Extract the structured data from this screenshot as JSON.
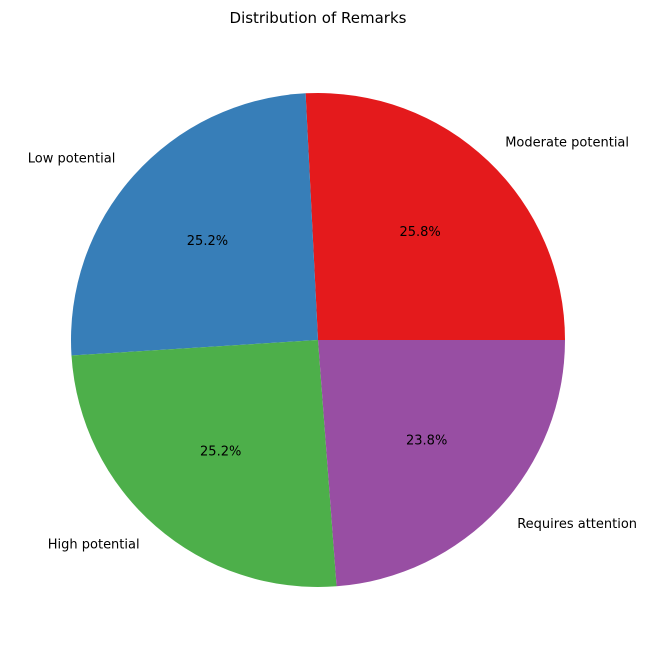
{
  "chart_data": {
    "type": "pie",
    "title": "Distribution of Remarks",
    "slices": [
      {
        "label": "Moderate potential",
        "value": 25.8,
        "pct_label": "25.8%",
        "color": "#e41a1c"
      },
      {
        "label": "Low potential",
        "value": 25.2,
        "pct_label": "25.2%",
        "color": "#377eb8"
      },
      {
        "label": "High potential",
        "value": 25.2,
        "pct_label": "25.2%",
        "color": "#4daf4a"
      },
      {
        "label": "Requires attention",
        "value": 23.8,
        "pct_label": "23.8%",
        "color": "#984ea3"
      }
    ],
    "start_angle_deg": 0,
    "direction": "counterclockwise",
    "legend": "none"
  }
}
